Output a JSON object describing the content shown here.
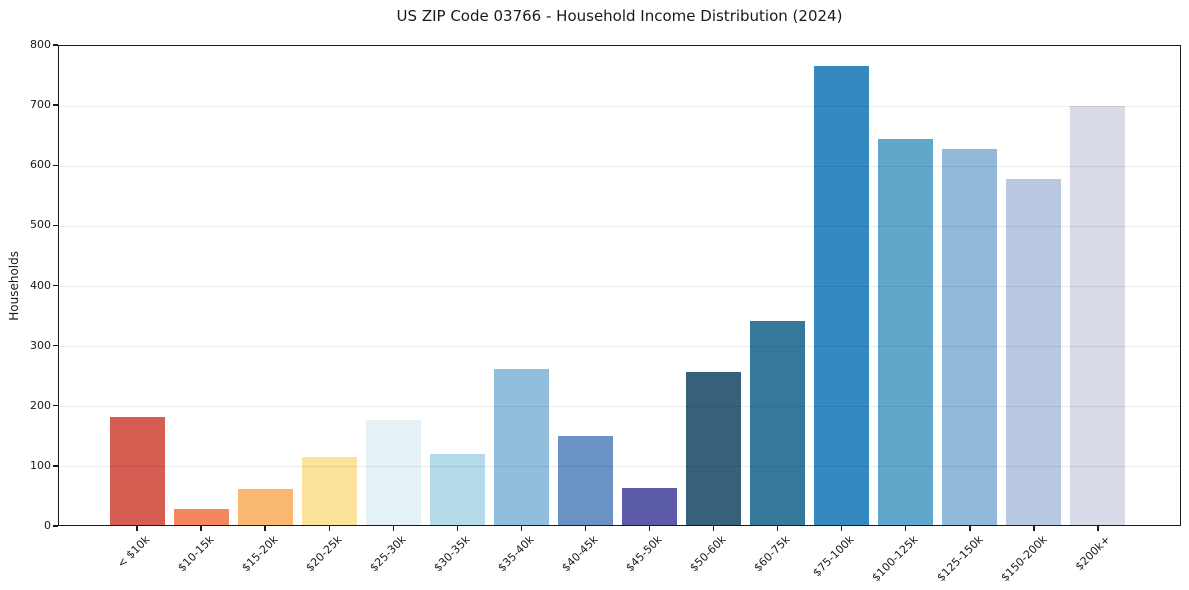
{
  "chart_data": {
    "type": "bar",
    "title": "US ZIP Code 03766 - Household Income Distribution (2024)",
    "xlabel": "",
    "ylabel": "Households",
    "ylim": [
      0,
      800
    ],
    "yticks": [
      0,
      100,
      200,
      300,
      400,
      500,
      600,
      700,
      800
    ],
    "grid": true,
    "legend": false,
    "categories": [
      "< $10k",
      "$10-15k",
      "$15-20k",
      "$20-25k",
      "$25-30k",
      "$30-35k",
      "$35-40k",
      "$40-45k",
      "$45-50k",
      "$50-60k",
      "$60-75k",
      "$75-100k",
      "$100-125k",
      "$125-150k",
      "$150-200k",
      "$200k+"
    ],
    "values": [
      180,
      26,
      60,
      114,
      176,
      118,
      260,
      148,
      62,
      256,
      340,
      766,
      644,
      628,
      578,
      699
    ],
    "bar_colors": [
      "#d65d52",
      "#f5875f",
      "#fab770",
      "#fce29b",
      "#e4f2f6",
      "#b5dbea",
      "#92bedd",
      "#6a92c5",
      "#5c5baa",
      "#37617a",
      "#36789c",
      "#3489c0",
      "#60a7cb",
      "#93b9da",
      "#b9c9e2",
      "#d8dae7"
    ],
    "colors": {
      "background": "#ffffff",
      "spine": "#1a1a1a",
      "grid_rgba": "rgba(0,0,0,0.08)",
      "text": "#1a1a1a"
    }
  }
}
